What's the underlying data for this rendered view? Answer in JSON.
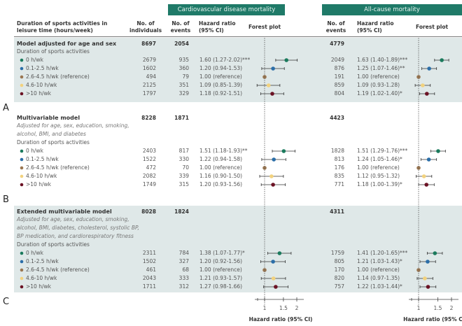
{
  "header": {
    "col_duration": "Duration of sports activities in leisure time (hours/week)",
    "col_individuals": "No. of individuals",
    "cvd_group": "Cardiovascular disease mortality",
    "all_group": "All-cause mortality",
    "col_events": "No. of events",
    "col_hr": "Hazard ratio (95% CI)",
    "col_forest": "Forest plot"
  },
  "colors": {
    "header_bg": "#1f7a68",
    "band_bg": "#dfe8e8",
    "categories": [
      "#1a7a5c",
      "#2b6ea8",
      "#9a7650",
      "#f2d27e",
      "#6b1224"
    ]
  },
  "chart_data": {
    "type": "forest",
    "x_scale": "log",
    "reference_line": 1,
    "xticks": [
      1,
      1.5,
      2
    ],
    "xtick_labels": [
      "1",
      "1.5",
      "2"
    ],
    "xlabel": "Hazard ratio (95% CI)",
    "models": [
      {
        "panel": "A",
        "title": "Model adjusted for age and sex",
        "adjustment": "",
        "individuals": "8697",
        "cvd_events": "2054",
        "all_events": "4779",
        "subtitle": "Duration of sports activities",
        "shaded": true,
        "rows": [
          {
            "category": "0 h/wk",
            "individuals": "2679",
            "cvd": {
              "events": "935",
              "hr": 1.6,
              "lo": 1.27,
              "hi": 2.02,
              "label": "1.60 (1.27-2.02)***"
            },
            "all": {
              "events": "2049",
              "hr": 1.63,
              "lo": 1.4,
              "hi": 1.89,
              "label": "1.63 (1.40-1.89)***"
            }
          },
          {
            "category": "0.1-2.5 h/wk",
            "individuals": "1602",
            "cvd": {
              "events": "360",
              "hr": 1.2,
              "lo": 0.94,
              "hi": 1.53,
              "label": "1.20 (0.94-1.53)"
            },
            "all": {
              "events": "876",
              "hr": 1.25,
              "lo": 1.07,
              "hi": 1.46,
              "label": "1.25 (1.07-1.46)**"
            }
          },
          {
            "category": "2.6-4.5 h/wk (reference)",
            "individuals": "494",
            "cvd": {
              "events": "79",
              "hr": 1.0,
              "lo": 1.0,
              "hi": 1.0,
              "label": "1.00 (reference)"
            },
            "all": {
              "events": "191",
              "hr": 1.0,
              "lo": 1.0,
              "hi": 1.0,
              "label": "1.00 (reference)"
            }
          },
          {
            "category": "4.6-10 h/wk",
            "individuals": "2125",
            "cvd": {
              "events": "351",
              "hr": 1.09,
              "lo": 0.85,
              "hi": 1.39,
              "label": "1.09 (0.85-1.39)"
            },
            "all": {
              "events": "859",
              "hr": 1.09,
              "lo": 0.93,
              "hi": 1.28,
              "label": "1.09 (0.93-1.28)"
            }
          },
          {
            "category": ">10 h/wk",
            "individuals": "1797",
            "cvd": {
              "events": "329",
              "hr": 1.18,
              "lo": 0.92,
              "hi": 1.51,
              "label": "1.18 (0.92-1.51)"
            },
            "all": {
              "events": "804",
              "hr": 1.19,
              "lo": 1.02,
              "hi": 1.4,
              "label": "1.19 (1.02-1.40)*"
            }
          }
        ]
      },
      {
        "panel": "B",
        "title": "Multivariable model",
        "adjustment": [
          "Adjusted for age, sex, education, smoking,",
          "alcohol, BMI, and diabetes"
        ],
        "individuals": "8228",
        "cvd_events": "1871",
        "all_events": "4423",
        "subtitle": "Duration of sports activities",
        "shaded": false,
        "rows": [
          {
            "category": "0 h/wk",
            "individuals": "2403",
            "cvd": {
              "events": "817",
              "hr": 1.51,
              "lo": 1.18,
              "hi": 1.93,
              "label": "1.51 (1.18-1.93)**"
            },
            "all": {
              "events": "1828",
              "hr": 1.51,
              "lo": 1.29,
              "hi": 1.76,
              "label": "1.51 (1.29-1.76)***"
            }
          },
          {
            "category": "0.1-2.5 h/wk",
            "individuals": "1522",
            "cvd": {
              "events": "330",
              "hr": 1.22,
              "lo": 0.94,
              "hi": 1.58,
              "label": "1.22 (0.94-1.58)"
            },
            "all": {
              "events": "813",
              "hr": 1.24,
              "lo": 1.05,
              "hi": 1.46,
              "label": "1.24 (1.05-1.46)*"
            }
          },
          {
            "category": "2.6-4.5 h/wk (reference)",
            "individuals": "472",
            "cvd": {
              "events": "70",
              "hr": 1.0,
              "lo": 1.0,
              "hi": 1.0,
              "label": "1.00 (reference)"
            },
            "all": {
              "events": "176",
              "hr": 1.0,
              "lo": 1.0,
              "hi": 1.0,
              "label": "1.00 (reference)"
            }
          },
          {
            "category": "4.6-10 h/wk",
            "individuals": "2082",
            "cvd": {
              "events": "339",
              "hr": 1.16,
              "lo": 0.9,
              "hi": 1.5,
              "label": "1.16 (0.90-1.50)"
            },
            "all": {
              "events": "835",
              "hr": 1.12,
              "lo": 0.95,
              "hi": 1.32,
              "label": "1.12 (0.95-1.32)"
            }
          },
          {
            "category": ">10 h/wk",
            "individuals": "1749",
            "cvd": {
              "events": "315",
              "hr": 1.2,
              "lo": 0.93,
              "hi": 1.56,
              "label": "1.20 (0.93-1.56)"
            },
            "all": {
              "events": "771",
              "hr": 1.18,
              "lo": 1.0,
              "hi": 1.39,
              "label": "1.18 (1.00-1.39)*"
            }
          }
        ]
      },
      {
        "panel": "C",
        "title": "Extended multivariable model",
        "adjustment": [
          "Adjusted for age, sex, education, smoking,",
          "alcohol, BMI, diabetes, cholesterol, systolic BP,",
          "BP medication, and cardiorespiratory fitness"
        ],
        "individuals": "8028",
        "cvd_events": "1824",
        "all_events": "4311",
        "subtitle": "Duration of sports activities",
        "shaded": true,
        "rows": [
          {
            "category": "0 h/wk",
            "individuals": "2311",
            "cvd": {
              "events": "784",
              "hr": 1.38,
              "lo": 1.07,
              "hi": 1.77,
              "label": "1.38 (1.07-1.77)*"
            },
            "all": {
              "events": "1759",
              "hr": 1.41,
              "lo": 1.2,
              "hi": 1.65,
              "label": "1.41 (1.20-1.65)***"
            }
          },
          {
            "category": "0.1-2.5 h/wk",
            "individuals": "1502",
            "cvd": {
              "events": "327",
              "hr": 1.2,
              "lo": 0.92,
              "hi": 1.56,
              "label": "1.20 (0.92-1.56)"
            },
            "all": {
              "events": "805",
              "hr": 1.21,
              "lo": 1.03,
              "hi": 1.43,
              "label": "1.21 (1.03-1.43)*"
            }
          },
          {
            "category": "2.6-4.5 h/wk (reference)",
            "individuals": "461",
            "cvd": {
              "events": "68",
              "hr": 1.0,
              "lo": 1.0,
              "hi": 1.0,
              "label": "1.00 (reference)"
            },
            "all": {
              "events": "170",
              "hr": 1.0,
              "lo": 1.0,
              "hi": 1.0,
              "label": "1.00 (reference)"
            }
          },
          {
            "category": "4.6-10 h/wk",
            "individuals": "2043",
            "cvd": {
              "events": "333",
              "hr": 1.21,
              "lo": 0.93,
              "hi": 1.57,
              "label": "1.21 (0.93-1.57)"
            },
            "all": {
              "events": "820",
              "hr": 1.14,
              "lo": 0.97,
              "hi": 1.35,
              "label": "1.14 (0.97-1.35)"
            }
          },
          {
            "category": ">10 h/wk",
            "individuals": "1711",
            "cvd": {
              "events": "312",
              "hr": 1.27,
              "lo": 0.98,
              "hi": 1.66,
              "label": "1.27 (0.98-1.66)"
            },
            "all": {
              "events": "757",
              "hr": 1.22,
              "lo": 1.03,
              "hi": 1.44,
              "label": "1.22 (1.03-1.44)*"
            }
          }
        ]
      }
    ]
  }
}
